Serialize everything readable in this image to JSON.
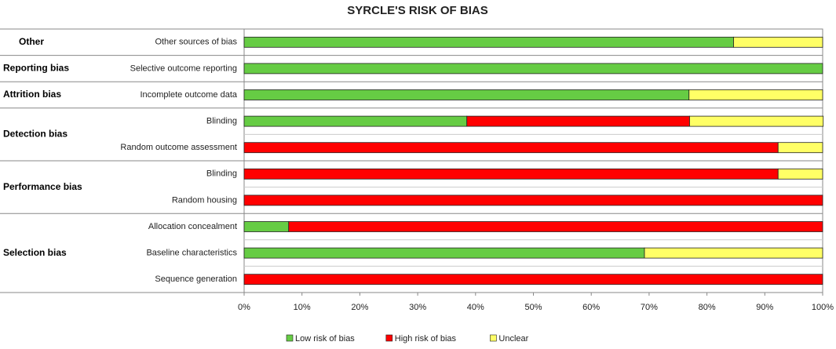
{
  "chart_data": {
    "type": "stacked_bar_horizontal",
    "title": "SYRCLE'S RISK OF BIAS",
    "groups": [
      {
        "name": "Other",
        "items": [
          "Other sources of bias"
        ]
      },
      {
        "name": "Reporting bias",
        "items": [
          "Selective outcome reporting"
        ]
      },
      {
        "name": "Attrition bias",
        "items": [
          "Incomplete outcome data"
        ]
      },
      {
        "name": "Detection bias",
        "items": [
          "Blinding",
          "Random outcome assessment"
        ]
      },
      {
        "name": "Performance bias",
        "items": [
          "Blinding",
          "Random housing"
        ]
      },
      {
        "name": "Selection bias",
        "items": [
          "Allocation concealment",
          "Baseline characteristics",
          "Sequence generation"
        ]
      }
    ],
    "series": [
      {
        "name": "Low risk of bias",
        "color": "#66cc44",
        "values": [
          84.6,
          100,
          76.9,
          38.5,
          0,
          0,
          0,
          7.7,
          69.2,
          0
        ]
      },
      {
        "name": "High risk of bias",
        "color": "#ff0000",
        "values": [
          0,
          0,
          0,
          38.5,
          92.3,
          92.3,
          100,
          92.3,
          0,
          100
        ]
      },
      {
        "name": "Unclear",
        "color": "#ffff66",
        "values": [
          15.4,
          0,
          23.1,
          23.1,
          7.7,
          7.7,
          0,
          0,
          30.8,
          0
        ]
      }
    ],
    "xlim": [
      0,
      100
    ],
    "xticks": [
      {
        "value": 0,
        "label": "0%"
      },
      {
        "value": 10,
        "label": "10%"
      },
      {
        "value": 20,
        "label": "20%"
      },
      {
        "value": 30,
        "label": "30%"
      },
      {
        "value": 40,
        "label": "40%"
      },
      {
        "value": 50,
        "label": "50%"
      },
      {
        "value": 60,
        "label": "60%"
      },
      {
        "value": 70,
        "label": "70%"
      },
      {
        "value": 80,
        "label": "80%"
      },
      {
        "value": 90,
        "label": "90%"
      },
      {
        "value": 100,
        "label": "100%"
      }
    ],
    "legend": "bottom"
  }
}
